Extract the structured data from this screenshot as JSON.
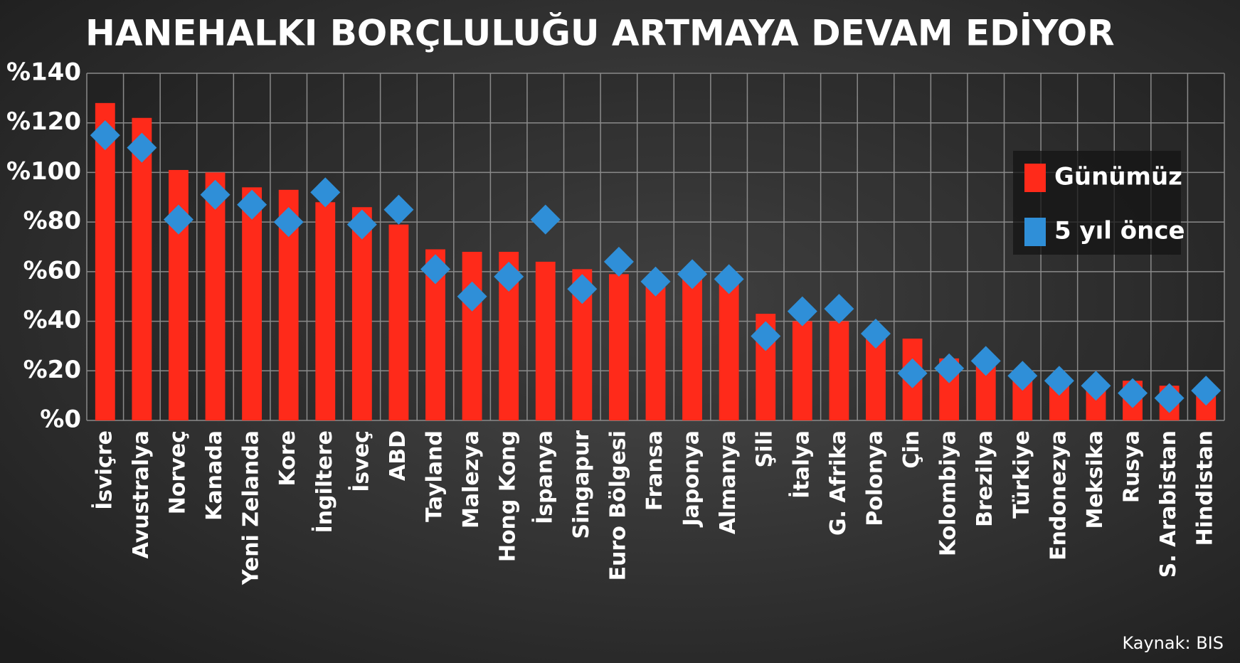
{
  "chart_data": {
    "type": "bar",
    "title": "HANEHALKI BORÇLULUĞU ARTMAYA DEVAM EDİYOR",
    "source": "Kaynak: BIS",
    "categories": [
      "İsviçre",
      "Avustralya",
      "Norveç",
      "Kanada",
      "Yeni Zelanda",
      "Kore",
      "İngiltere",
      "İsveç",
      "ABD",
      "Tayland",
      "Malezya",
      "Hong Kong",
      "İspanya",
      "Singapur",
      "Euro Bölgesi",
      "Fransa",
      "Japonya",
      "Almanya",
      "Şili",
      "İtalya",
      "G. Afrika",
      "Polonya",
      "Çin",
      "Kolombiya",
      "Brezilya",
      "Türkiye",
      "Endonezya",
      "Meksika",
      "Rusya",
      "S. Arabistan",
      "Hindistan"
    ],
    "series": [
      {
        "name": "Günümüz",
        "color": "#ff2a1a",
        "marker": "bar",
        "values": [
          128,
          122,
          101,
          100,
          94,
          93,
          88,
          86,
          79,
          69,
          68,
          68,
          64,
          61,
          59,
          55,
          58,
          55,
          43,
          40,
          40,
          34,
          33,
          25,
          22,
          17,
          16,
          14,
          16,
          14,
          10
        ]
      },
      {
        "name": "5 yıl önce",
        "color": "#2f8fd8",
        "marker": "diamond",
        "values": [
          115,
          110,
          81,
          91,
          87,
          80,
          92,
          79,
          85,
          61,
          50,
          58,
          81,
          53,
          64,
          56,
          59,
          57,
          34,
          44,
          45,
          35,
          19,
          21,
          24,
          18,
          16,
          14,
          11,
          9,
          12
        ]
      }
    ],
    "ylim": [
      0,
      140
    ],
    "yticks": [
      {
        "value": 0,
        "label": "%0"
      },
      {
        "value": 20,
        "label": "%20"
      },
      {
        "value": 40,
        "label": "%40"
      },
      {
        "value": 60,
        "label": "%60"
      },
      {
        "value": 80,
        "label": "%80"
      },
      {
        "value": 100,
        "label": "%100"
      },
      {
        "value": 120,
        "label": "%120"
      },
      {
        "value": 140,
        "label": "%140"
      }
    ],
    "grid": true,
    "legend": "upper right"
  }
}
